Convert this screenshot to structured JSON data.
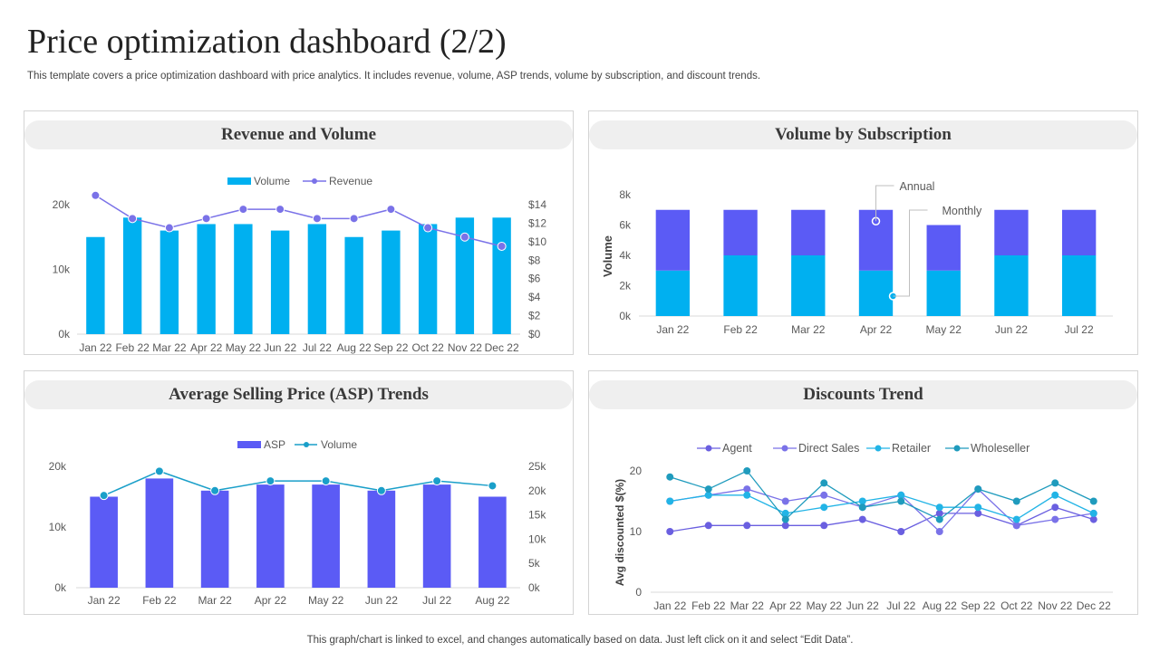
{
  "page": {
    "title": "Price optimization dashboard (2/2)",
    "subtitle": "This template covers a price optimization dashboard with price analytics. It includes revenue, volume, ASP trends, volume by subscription, and discount trends.",
    "footer": "This graph/chart is linked to excel,  and changes automatically based on data. Just left click on it and select “Edit Data”."
  },
  "colors": {
    "cyan": "#00b0f0",
    "violet": "#5b5bf5",
    "cyan_dark": "#1a9fc9",
    "violet_light": "#7a72e8"
  },
  "chart_data": [
    {
      "id": "revenue_volume",
      "type": "bar",
      "title": "Revenue and Volume",
      "categories": [
        "Jan 22",
        "Feb 22",
        "Mar 22",
        "Apr 22",
        "May 22",
        "Jun 22",
        "Jul 22",
        "Aug 22",
        "Sep 22",
        "Oct 22",
        "Nov 22",
        "Dec 22"
      ],
      "series": [
        {
          "name": "Volume",
          "type": "bar",
          "axis": "left",
          "values": [
            15000,
            18000,
            16000,
            17000,
            17000,
            16000,
            17000,
            15000,
            16000,
            17000,
            18000,
            18000
          ]
        },
        {
          "name": "Revenue",
          "type": "line",
          "axis": "right",
          "values": [
            15,
            12.5,
            11.5,
            12.5,
            13.5,
            13.5,
            12.5,
            12.5,
            13.5,
            11.5,
            10.5,
            9.5
          ]
        }
      ],
      "ylim_left": [
        0,
        20000
      ],
      "yticks_left": [
        "0k",
        "10k",
        "20k"
      ],
      "ylim_right": [
        0,
        14
      ],
      "yticks_right": [
        "$0",
        "$2",
        "$4",
        "$6",
        "$8",
        "$10",
        "$12",
        "$14"
      ],
      "legend": "top-center"
    },
    {
      "id": "volume_subscription",
      "type": "bar",
      "stacked": true,
      "title": "Volume by Subscription",
      "ylabel": "Volume",
      "categories": [
        "Jan 22",
        "Feb 22",
        "Mar 22",
        "Apr 22",
        "May 22",
        "Jun 22",
        "Jul 22"
      ],
      "series": [
        {
          "name": "Monthly",
          "values": [
            3000,
            4000,
            4000,
            3000,
            3000,
            4000,
            4000
          ]
        },
        {
          "name": "Annual",
          "values": [
            4000,
            3000,
            3000,
            4000,
            3000,
            3000,
            3000
          ]
        }
      ],
      "ylim": [
        0,
        8000
      ],
      "yticks": [
        "0k",
        "2k",
        "4k",
        "6k",
        "8k"
      ],
      "annotations": [
        "Annual",
        "Monthly"
      ]
    },
    {
      "id": "asp_trends",
      "type": "bar",
      "title": "Average Selling Price (ASP) Trends",
      "categories": [
        "Jan 22",
        "Feb 22",
        "Mar 22",
        "Apr 22",
        "May 22",
        "Jun 22",
        "Jul 22",
        "Aug 22"
      ],
      "series": [
        {
          "name": "ASP",
          "type": "bar",
          "axis": "left",
          "values": [
            15000,
            18000,
            16000,
            17000,
            17000,
            16000,
            17000,
            15000
          ]
        },
        {
          "name": "Volume",
          "type": "line",
          "axis": "right",
          "values": [
            19000,
            24000,
            20000,
            22000,
            22000,
            20000,
            22000,
            21000
          ]
        }
      ],
      "ylim_left": [
        0,
        20000
      ],
      "yticks_left": [
        "0k",
        "10k",
        "20k"
      ],
      "ylim_right": [
        0,
        25000
      ],
      "yticks_right": [
        "0k",
        "5k",
        "10k",
        "15k",
        "20k",
        "25k"
      ],
      "legend": "top-center"
    },
    {
      "id": "discounts_trend",
      "type": "line",
      "title": "Discounts Trend",
      "ylabel": "Avg discounted $(%)",
      "categories": [
        "Jan 22",
        "Feb 22",
        "Mar 22",
        "Apr 22",
        "May 22",
        "Jun 22",
        "Jul 22",
        "Aug 22",
        "Sep 22",
        "Oct 22",
        "Nov 22",
        "Dec 22"
      ],
      "series": [
        {
          "name": "Agent",
          "values": [
            10,
            11,
            11,
            11,
            11,
            12,
            10,
            13,
            13,
            11,
            14,
            12
          ]
        },
        {
          "name": "Direct Sales",
          "values": [
            15,
            16,
            17,
            15,
            16,
            14,
            16,
            10,
            17,
            11,
            12,
            13
          ]
        },
        {
          "name": "Retailer",
          "values": [
            15,
            16,
            16,
            13,
            14,
            15,
            16,
            14,
            14,
            12,
            16,
            13
          ]
        },
        {
          "name": "Wholeseller",
          "values": [
            19,
            17,
            20,
            12,
            18,
            14,
            15,
            12,
            17,
            15,
            18,
            15
          ]
        }
      ],
      "ylim": [
        0,
        20
      ],
      "yticks": [
        "0",
        "10",
        "20"
      ],
      "legend": "top-center"
    }
  ]
}
